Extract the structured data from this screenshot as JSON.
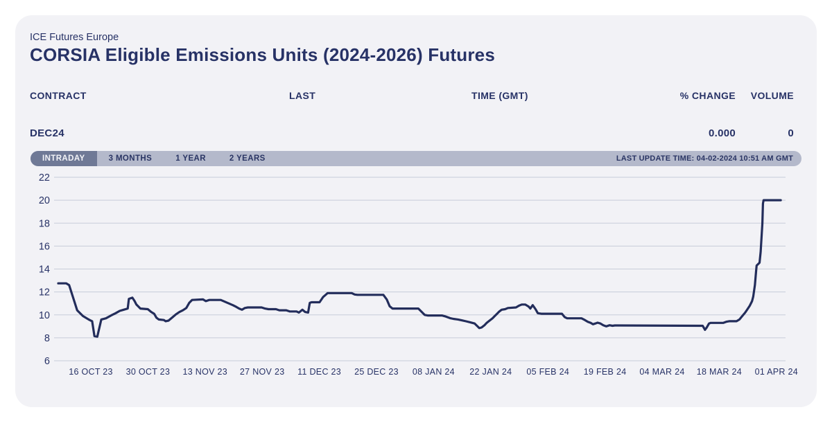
{
  "header": {
    "exchange": "ICE Futures Europe",
    "title": "CORSIA Eligible Emissions Units (2024-2026) Futures"
  },
  "table": {
    "headers": [
      "CONTRACT",
      "LAST",
      "TIME (GMT)",
      "% CHANGE",
      "VOLUME"
    ],
    "rows": [
      {
        "contract": "DEC24",
        "last": "",
        "time": "",
        "pct_change": "0.000",
        "volume": "0"
      }
    ]
  },
  "tabs": {
    "items": [
      "INTRADAY",
      "3 MONTHS",
      "1 YEAR",
      "2 YEARS"
    ],
    "active": "INTRADAY",
    "last_update": "LAST UPDATE TIME: 04-02-2024 10:51 AM GMT"
  },
  "chart_data": {
    "type": "line",
    "ylim": [
      6,
      22
    ],
    "y_ticks": [
      22,
      20,
      18,
      16,
      14,
      12,
      10,
      8,
      6
    ],
    "x_ticks": [
      "16 OCT 23",
      "30 OCT 23",
      "13 NOV 23",
      "27 NOV 23",
      "11 DEC 23",
      "25 DEC 23",
      "08 JAN 24",
      "22 JAN 24",
      "05 FEB 24",
      "19 FEB 24",
      "04 MAR 24",
      "18 MAR 24",
      "01 APR 24"
    ],
    "grid": true,
    "legend": false,
    "xlabel": "",
    "ylabel": "",
    "colors": {
      "line": "#232d5b",
      "grid": "#c7ccd9",
      "text": "#273266"
    },
    "series": [
      {
        "name": "DEC24",
        "points": [
          [
            0,
            12.75
          ],
          [
            1.4,
            12.75
          ],
          [
            1.9,
            12.6
          ],
          [
            3.3,
            10.4
          ],
          [
            4.3,
            9.9
          ],
          [
            5.3,
            9.6
          ],
          [
            5.9,
            9.45
          ],
          [
            6.3,
            8.15
          ],
          [
            6.8,
            8.1
          ],
          [
            7.5,
            9.6
          ],
          [
            8.3,
            9.7
          ],
          [
            9.2,
            9.95
          ],
          [
            10,
            10.15
          ],
          [
            10.7,
            10.35
          ],
          [
            11.4,
            10.45
          ],
          [
            12.1,
            10.55
          ],
          [
            12.3,
            11.4
          ],
          [
            12.9,
            11.5
          ],
          [
            13.3,
            11.2
          ],
          [
            13.6,
            10.9
          ],
          [
            14.3,
            10.55
          ],
          [
            15.6,
            10.5
          ],
          [
            16.2,
            10.25
          ],
          [
            16.7,
            10.1
          ],
          [
            17.1,
            9.75
          ],
          [
            17.5,
            9.6
          ],
          [
            18.4,
            9.55
          ],
          [
            18.7,
            9.45
          ],
          [
            19.2,
            9.5
          ],
          [
            19.8,
            9.75
          ],
          [
            20.5,
            10.05
          ],
          [
            21.1,
            10.25
          ],
          [
            21.7,
            10.4
          ],
          [
            22.3,
            10.6
          ],
          [
            22.8,
            11.05
          ],
          [
            23.3,
            11.3
          ],
          [
            25.2,
            11.35
          ],
          [
            25.7,
            11.2
          ],
          [
            26.3,
            11.3
          ],
          [
            28.3,
            11.3
          ],
          [
            29,
            11.15
          ],
          [
            29.7,
            11
          ],
          [
            30.4,
            10.85
          ],
          [
            31,
            10.7
          ],
          [
            31.5,
            10.55
          ],
          [
            32,
            10.45
          ],
          [
            32.5,
            10.6
          ],
          [
            33,
            10.65
          ],
          [
            35.4,
            10.65
          ],
          [
            36,
            10.55
          ],
          [
            36.6,
            10.5
          ],
          [
            37.9,
            10.5
          ],
          [
            38.5,
            10.4
          ],
          [
            39.7,
            10.4
          ],
          [
            40.3,
            10.3
          ],
          [
            41.5,
            10.3
          ],
          [
            41.9,
            10.2
          ],
          [
            42.5,
            10.45
          ],
          [
            43,
            10.25
          ],
          [
            43.5,
            10.2
          ],
          [
            43.8,
            11.05
          ],
          [
            44.1,
            11.1
          ],
          [
            45.5,
            11.1
          ],
          [
            46.1,
            11.55
          ],
          [
            46.9,
            11.9
          ],
          [
            51.1,
            11.9
          ],
          [
            51.6,
            11.78
          ],
          [
            52.1,
            11.75
          ],
          [
            56.6,
            11.75
          ],
          [
            57.2,
            11.35
          ],
          [
            57.7,
            10.75
          ],
          [
            58.2,
            10.55
          ],
          [
            62.7,
            10.55
          ],
          [
            63.3,
            10.25
          ],
          [
            63.8,
            10
          ],
          [
            64.3,
            9.95
          ],
          [
            66.8,
            9.95
          ],
          [
            67.5,
            9.85
          ],
          [
            68.2,
            9.72
          ],
          [
            68.8,
            9.65
          ],
          [
            69.6,
            9.6
          ],
          [
            70.3,
            9.52
          ],
          [
            71,
            9.44
          ],
          [
            71.7,
            9.36
          ],
          [
            72.5,
            9.25
          ],
          [
            73,
            9
          ],
          [
            73.3,
            8.85
          ],
          [
            73.7,
            8.9
          ],
          [
            74.2,
            9.1
          ],
          [
            74.6,
            9.3
          ],
          [
            75.1,
            9.5
          ],
          [
            75.6,
            9.7
          ],
          [
            76,
            9.9
          ],
          [
            76.4,
            10.1
          ],
          [
            76.8,
            10.3
          ],
          [
            77.2,
            10.45
          ],
          [
            77.8,
            10.5
          ],
          [
            78.3,
            10.6
          ],
          [
            79.7,
            10.65
          ],
          [
            80.2,
            10.8
          ],
          [
            80.7,
            10.9
          ],
          [
            81.3,
            10.9
          ],
          [
            81.9,
            10.72
          ],
          [
            82.2,
            10.55
          ],
          [
            82.6,
            10.85
          ],
          [
            83.1,
            10.5
          ],
          [
            83.5,
            10.15
          ],
          [
            84.1,
            10.1
          ],
          [
            87.7,
            10.1
          ],
          [
            88.2,
            9.8
          ],
          [
            88.6,
            9.7
          ],
          [
            91.1,
            9.7
          ],
          [
            91.7,
            9.55
          ],
          [
            92.2,
            9.4
          ],
          [
            92.7,
            9.3
          ],
          [
            93.1,
            9.18
          ],
          [
            93.5,
            9.25
          ],
          [
            93.9,
            9.32
          ],
          [
            94.4,
            9.25
          ],
          [
            94.9,
            9.1
          ],
          [
            95.4,
            9
          ],
          [
            96,
            9.1
          ],
          [
            96.5,
            9.05
          ],
          [
            96.9,
            9.08
          ],
          [
            112.2,
            9.05
          ],
          [
            112.6,
            8.7
          ],
          [
            112.9,
            8.9
          ],
          [
            113.3,
            9.25
          ],
          [
            113.6,
            9.3
          ],
          [
            115.8,
            9.3
          ],
          [
            116.3,
            9.4
          ],
          [
            116.8,
            9.45
          ],
          [
            118.1,
            9.45
          ],
          [
            118.6,
            9.6
          ],
          [
            119.1,
            9.9
          ],
          [
            119.6,
            10.2
          ],
          [
            120,
            10.5
          ],
          [
            120.4,
            10.8
          ],
          [
            120.8,
            11.2
          ],
          [
            121,
            11.6
          ],
          [
            121.3,
            12.6
          ],
          [
            121.5,
            13.8
          ],
          [
            121.6,
            14.3
          ],
          [
            122.1,
            14.55
          ],
          [
            122.3,
            15.5
          ],
          [
            122.6,
            18
          ],
          [
            122.7,
            19.7
          ],
          [
            122.8,
            20
          ],
          [
            125.8,
            20
          ]
        ]
      }
    ]
  }
}
